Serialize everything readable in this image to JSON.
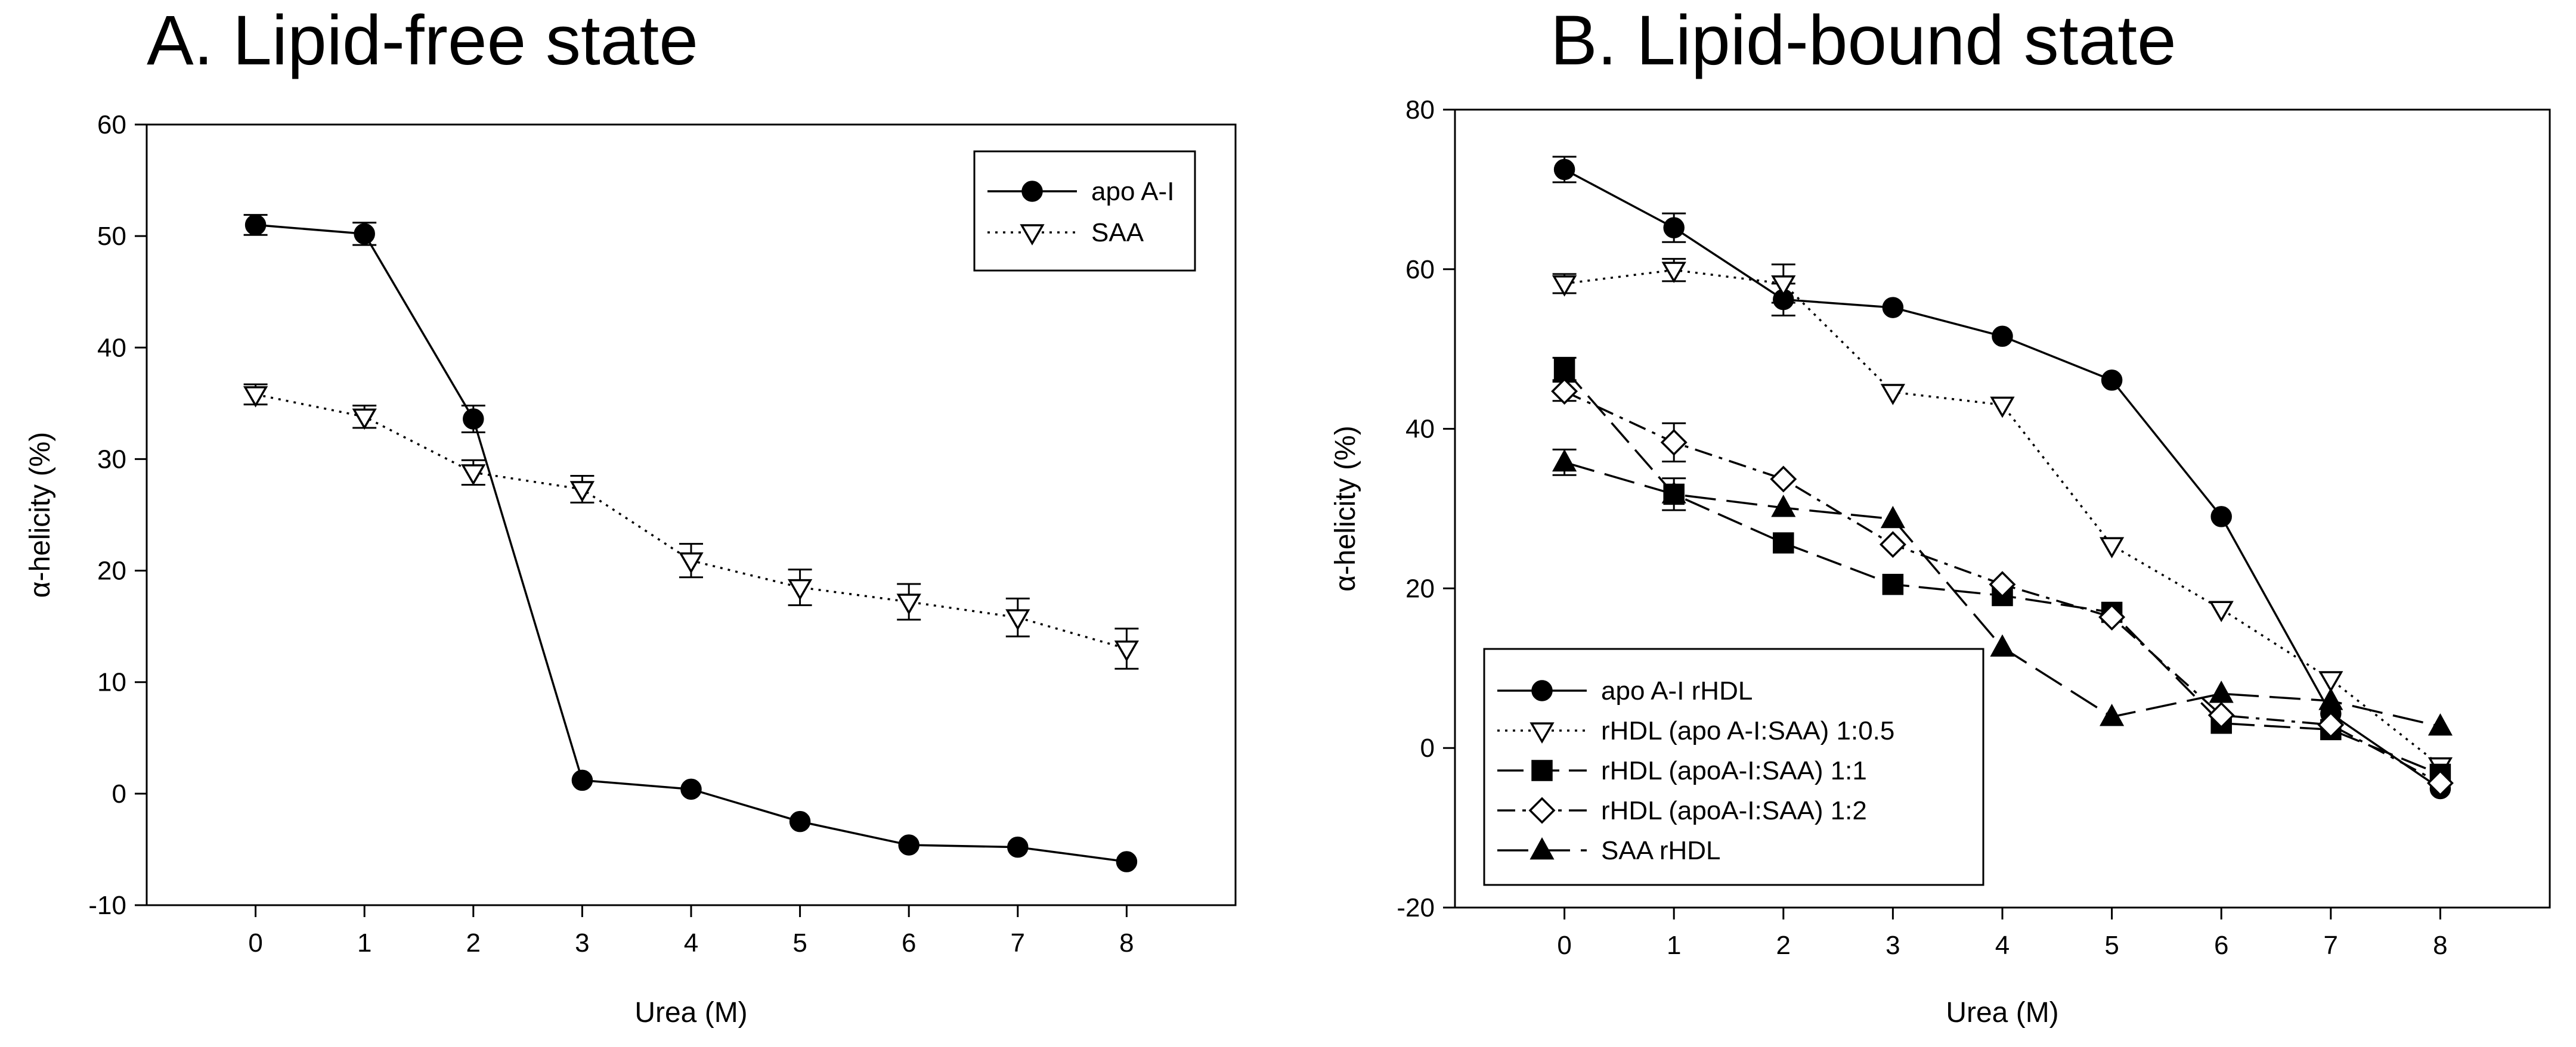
{
  "chart_data": [
    {
      "type": "line",
      "title": "A. Lipid-free state",
      "xlabel": "Urea (M)",
      "ylabel": "α-helicity (%)",
      "xlim": [
        -1.0,
        9.0
      ],
      "ylim": [
        -10,
        60
      ],
      "xticks": [
        0,
        1,
        2,
        3,
        4,
        5,
        6,
        7,
        8
      ],
      "yticks": [
        -10,
        0,
        10,
        20,
        30,
        40,
        50,
        60
      ],
      "legend_position": "top-right",
      "series": [
        {
          "name": "apo A-I",
          "marker": "circle-filled",
          "line": "solid",
          "x": [
            0,
            1,
            2,
            3,
            4,
            5,
            6,
            7,
            8
          ],
          "y": [
            51.0,
            50.2,
            33.6,
            1.2,
            0.4,
            -2.5,
            -4.6,
            -4.8,
            -6.1
          ],
          "error": [
            0.9,
            1.0,
            1.2,
            0,
            0,
            0,
            0,
            0,
            0
          ]
        },
        {
          "name": "SAA",
          "marker": "triangle-down-open",
          "line": "dotted",
          "x": [
            0,
            1,
            2,
            3,
            4,
            5,
            6,
            7,
            8
          ],
          "y": [
            35.8,
            33.8,
            28.8,
            27.3,
            20.9,
            18.5,
            17.2,
            15.8,
            13.0
          ],
          "error": [
            0.9,
            1.0,
            1.1,
            1.2,
            1.5,
            1.6,
            1.6,
            1.7,
            1.8
          ]
        }
      ]
    },
    {
      "type": "line",
      "title": "B. Lipid-bound state",
      "xlabel": "Urea (M)",
      "ylabel": "α-helicity (%)",
      "xlim": [
        -1.0,
        9.0
      ],
      "ylim": [
        -20,
        80
      ],
      "xticks": [
        0,
        1,
        2,
        3,
        4,
        5,
        6,
        7,
        8
      ],
      "yticks": [
        -20,
        0,
        20,
        40,
        60,
        80
      ],
      "legend_position": "bottom-left",
      "series": [
        {
          "name": "apo A-I rHDL",
          "marker": "circle-filled",
          "line": "solid",
          "x": [
            0,
            1,
            2,
            3,
            4,
            5,
            6,
            7,
            8
          ],
          "y": [
            72.5,
            65.2,
            56.2,
            55.2,
            51.6,
            46.1,
            29.0,
            4.3,
            -5.1
          ],
          "error": [
            1.6,
            1.8,
            2.0,
            0,
            0,
            0,
            0,
            0,
            0
          ]
        },
        {
          "name": "rHDL (apo A-I:SAA) 1:0.5",
          "marker": "triangle-down-open",
          "line": "dotted",
          "x": [
            0,
            1,
            2,
            3,
            4,
            5,
            6,
            7,
            8
          ],
          "y": [
            58.2,
            59.9,
            58.2,
            44.6,
            43.0,
            25.4,
            17.4,
            8.6,
            -2.2
          ],
          "error": [
            1.2,
            1.4,
            2.4,
            0,
            0,
            0,
            0,
            0,
            0
          ]
        },
        {
          "name": "rHDL (apoA-I:SAA) 1:1",
          "marker": "square-filled",
          "line": "long-dash",
          "x": [
            0,
            1,
            2,
            3,
            4,
            5,
            6,
            7,
            8
          ],
          "y": [
            47.5,
            31.8,
            25.7,
            20.5,
            19.1,
            17.0,
            3.1,
            2.3,
            -3.3
          ],
          "error": [
            1.4,
            2.0,
            0,
            0,
            0,
            0,
            0,
            0,
            0
          ]
        },
        {
          "name": "rHDL (apoA-I:SAA) 1:2",
          "marker": "diamond-open",
          "line": "dash-dot",
          "x": [
            0,
            1,
            2,
            3,
            4,
            5,
            6,
            7,
            8
          ],
          "y": [
            44.7,
            38.3,
            33.7,
            25.5,
            20.5,
            16.4,
            4.1,
            2.9,
            -4.4
          ],
          "error": [
            1.2,
            2.4,
            0,
            0,
            0,
            0,
            0,
            0,
            0
          ]
        },
        {
          "name": "SAA rHDL",
          "marker": "triangle-up-filled",
          "line": "dashed",
          "x": [
            0,
            1,
            2,
            3,
            4,
            5,
            6,
            7,
            8
          ],
          "y": [
            35.8,
            31.8,
            30.1,
            28.7,
            12.6,
            3.9,
            6.8,
            5.9,
            2.7
          ],
          "error": [
            1.6,
            0,
            0,
            0,
            0,
            0,
            0,
            0,
            0
          ]
        }
      ]
    }
  ]
}
